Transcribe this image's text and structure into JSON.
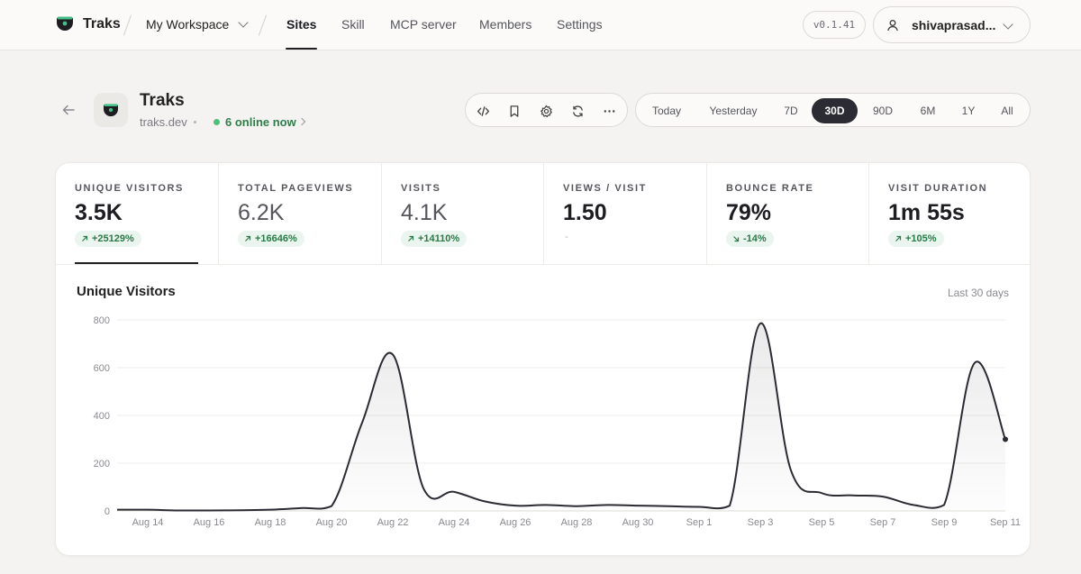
{
  "nav": {
    "brand": "Traks",
    "workspace": "My Workspace",
    "tabs": [
      {
        "label": "Sites",
        "active": true
      },
      {
        "label": "Skill",
        "active": false
      },
      {
        "label": "MCP server",
        "active": false
      },
      {
        "label": "Members",
        "active": false
      },
      {
        "label": "Settings",
        "active": false
      }
    ],
    "version": "v0.1.41",
    "user": "shivaprasad..."
  },
  "site": {
    "name": "Traks",
    "domain": "traks.dev",
    "online": "6 online now",
    "online_color": "#4cc17a"
  },
  "toolbar": {
    "icons": [
      "code-icon",
      "bookmark-icon",
      "gear-icon",
      "refresh-icon",
      "more-icon"
    ]
  },
  "ranges": [
    {
      "label": "Today",
      "active": false
    },
    {
      "label": "Yesterday",
      "active": false
    },
    {
      "label": "7D",
      "active": false
    },
    {
      "label": "30D",
      "active": true
    },
    {
      "label": "90D",
      "active": false
    },
    {
      "label": "6M",
      "active": false
    },
    {
      "label": "1Y",
      "active": false
    },
    {
      "label": "All",
      "active": false
    }
  ],
  "metrics": [
    {
      "label": "UNIQUE VISITORS",
      "value": "3.5K",
      "change": "+25129%",
      "direction": "up",
      "active": true
    },
    {
      "label": "TOTAL PAGEVIEWS",
      "value": "6.2K",
      "change": "+16646%",
      "direction": "up",
      "active": false
    },
    {
      "label": "VISITS",
      "value": "4.1K",
      "change": "+14110%",
      "direction": "up",
      "active": false
    },
    {
      "label": "VIEWS / VISIT",
      "value": "1.50",
      "change": "-",
      "direction": "none",
      "active": false
    },
    {
      "label": "BOUNCE RATE",
      "value": "79%",
      "change": "-14%",
      "direction": "down",
      "active": false
    },
    {
      "label": "VISIT DURATION",
      "value": "1m 55s",
      "change": "+105%",
      "direction": "up",
      "active": false
    }
  ],
  "chart": {
    "title": "Unique Visitors",
    "range_label": "Last 30 days"
  },
  "chart_data": {
    "type": "area",
    "title": "Unique Visitors",
    "xlabel": "",
    "ylabel": "",
    "ylim": [
      0,
      800
    ],
    "yticks": [
      0,
      200,
      400,
      600,
      800
    ],
    "grid": true,
    "x_tick_labels": [
      "Aug 14",
      "Aug 16",
      "Aug 18",
      "Aug 20",
      "Aug 22",
      "Aug 24",
      "Aug 26",
      "Aug 28",
      "Aug 30",
      "Sep 1",
      "Sep 3",
      "Sep 5",
      "Sep 7",
      "Sep 9",
      "Sep 11"
    ],
    "series": [
      {
        "x": [
          "Aug 13",
          "Aug 14",
          "Aug 15",
          "Aug 16",
          "Aug 17",
          "Aug 18",
          "Aug 19",
          "Aug 20",
          "Aug 21",
          "Aug 22",
          "Aug 23",
          "Aug 24",
          "Aug 25",
          "Aug 26",
          "Aug 27",
          "Aug 28",
          "Aug 29",
          "Aug 30",
          "Aug 31",
          "Sep 1",
          "Sep 2",
          "Sep 3",
          "Sep 4",
          "Sep 5",
          "Sep 6",
          "Sep 7",
          "Sep 8",
          "Sep 9",
          "Sep 10",
          "Sep 11"
        ],
        "values": [
          5,
          5,
          2,
          2,
          3,
          5,
          12,
          20,
          370,
          655,
          95,
          80,
          40,
          22,
          25,
          20,
          25,
          22,
          20,
          17,
          22,
          785,
          170,
          75,
          65,
          60,
          25,
          25,
          620,
          300
        ]
      }
    ]
  }
}
